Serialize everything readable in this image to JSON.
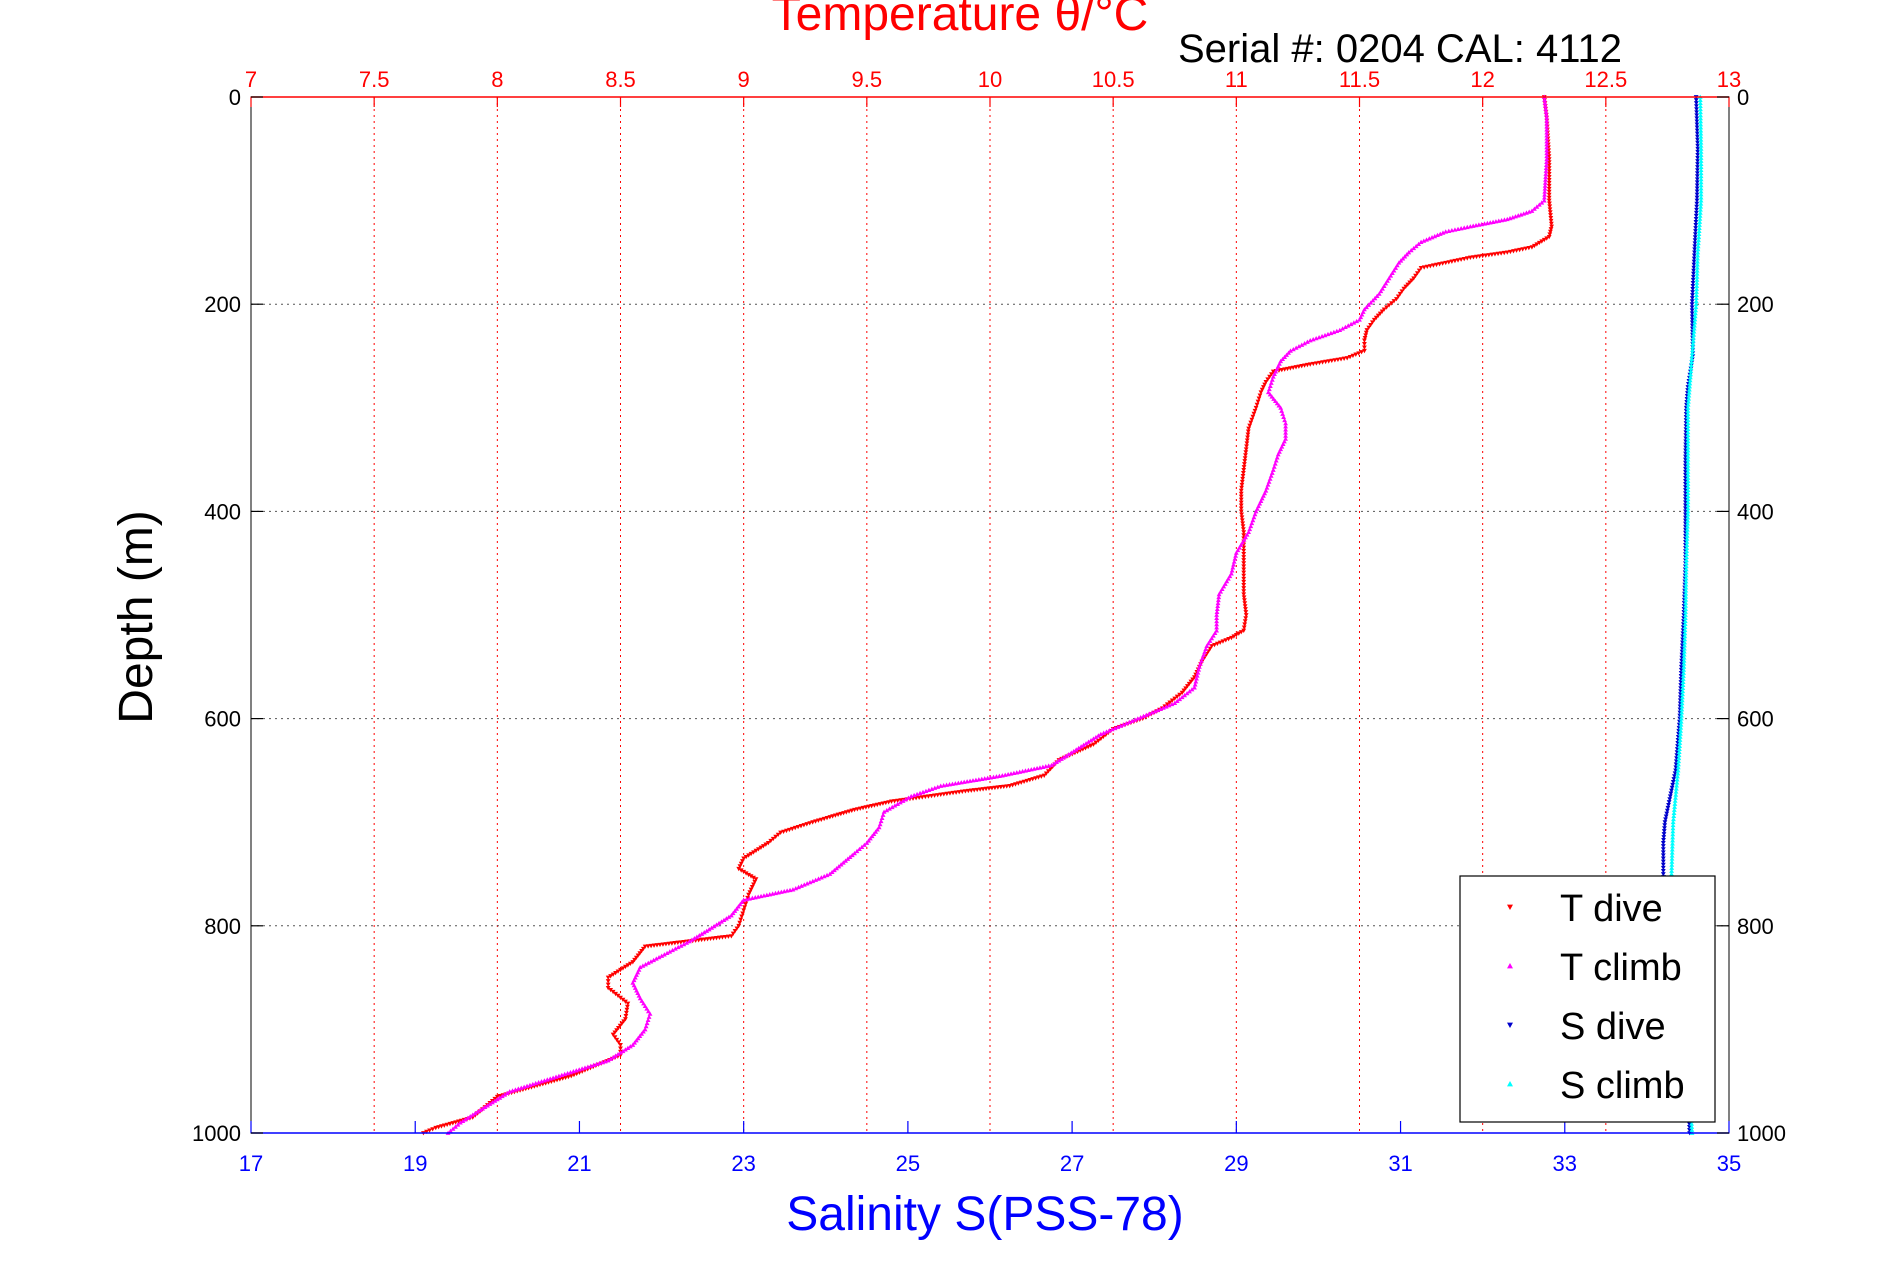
{
  "colors": {
    "temperature_axis": "#ff0000",
    "salinity_axis": "#0000ff",
    "t_dive": "#ff0000",
    "t_climb": "#ff00ff",
    "s_dive": "#0000cc",
    "s_climb": "#00ffff",
    "depth_axis": "#000000",
    "grid": "#555555"
  },
  "chart_data": {
    "type": "scatter",
    "title": "Temperature θ/°C",
    "subtitle": "Serial #: 0204  CAL: 4112",
    "xlabel": "Salinity S(PSS-78)",
    "x2label": "Temperature θ/°C",
    "ylabel": "Depth (m)",
    "grid": true,
    "legend_position": "bottom-right",
    "temperature_axis": {
      "range": [
        7,
        13
      ],
      "ticks": [
        "7",
        "7.5",
        "8",
        "8.5",
        "9",
        "9.5",
        "10",
        "10.5",
        "11",
        "11.5",
        "12",
        "12.5",
        "13"
      ]
    },
    "salinity_axis": {
      "range": [
        17,
        35
      ],
      "ticks": [
        "17",
        "19",
        "21",
        "23",
        "25",
        "27",
        "29",
        "31",
        "33",
        "35"
      ]
    },
    "depth_axis": {
      "range": [
        0,
        1000
      ],
      "inverted": true,
      "ticks": [
        "0",
        "200",
        "400",
        "600",
        "800",
        "1000"
      ]
    },
    "series": [
      {
        "name": "T dive",
        "axis": "temperature",
        "marker": "triangle-down",
        "points": [
          [
            0,
            12.25
          ],
          [
            20,
            12.26
          ],
          [
            60,
            12.27
          ],
          [
            100,
            12.27
          ],
          [
            125,
            12.28
          ],
          [
            135,
            12.27
          ],
          [
            145,
            12.2
          ],
          [
            150,
            12.1
          ],
          [
            155,
            11.95
          ],
          [
            160,
            11.85
          ],
          [
            165,
            11.75
          ],
          [
            175,
            11.72
          ],
          [
            185,
            11.68
          ],
          [
            195,
            11.65
          ],
          [
            205,
            11.6
          ],
          [
            215,
            11.56
          ],
          [
            225,
            11.53
          ],
          [
            235,
            11.52
          ],
          [
            245,
            11.52
          ],
          [
            252,
            11.45
          ],
          [
            258,
            11.3
          ],
          [
            265,
            11.15
          ],
          [
            275,
            11.12
          ],
          [
            285,
            11.1
          ],
          [
            300,
            11.08
          ],
          [
            320,
            11.05
          ],
          [
            340,
            11.04
          ],
          [
            360,
            11.03
          ],
          [
            380,
            11.02
          ],
          [
            400,
            11.02
          ],
          [
            420,
            11.03
          ],
          [
            450,
            11.03
          ],
          [
            480,
            11.03
          ],
          [
            500,
            11.04
          ],
          [
            515,
            11.03
          ],
          [
            522,
            10.98
          ],
          [
            530,
            10.9
          ],
          [
            545,
            10.86
          ],
          [
            560,
            10.83
          ],
          [
            575,
            10.78
          ],
          [
            590,
            10.7
          ],
          [
            600,
            10.62
          ],
          [
            610,
            10.5
          ],
          [
            625,
            10.42
          ],
          [
            640,
            10.28
          ],
          [
            655,
            10.22
          ],
          [
            665,
            10.08
          ],
          [
            670,
            9.9
          ],
          [
            675,
            9.75
          ],
          [
            680,
            9.6
          ],
          [
            688,
            9.45
          ],
          [
            695,
            9.35
          ],
          [
            700,
            9.28
          ],
          [
            710,
            9.15
          ],
          [
            720,
            9.1
          ],
          [
            735,
            9.0
          ],
          [
            745,
            8.98
          ],
          [
            755,
            9.05
          ],
          [
            770,
            9.02
          ],
          [
            785,
            9.0
          ],
          [
            800,
            8.98
          ],
          [
            810,
            8.95
          ],
          [
            820,
            8.6
          ],
          [
            835,
            8.55
          ],
          [
            850,
            8.45
          ],
          [
            860,
            8.45
          ],
          [
            875,
            8.53
          ],
          [
            890,
            8.52
          ],
          [
            905,
            8.47
          ],
          [
            915,
            8.5
          ],
          [
            925,
            8.5
          ],
          [
            935,
            8.4
          ],
          [
            945,
            8.3
          ],
          [
            955,
            8.15
          ],
          [
            965,
            8.0
          ],
          [
            975,
            7.95
          ],
          [
            985,
            7.9
          ],
          [
            995,
            7.75
          ],
          [
            1000,
            7.7
          ]
        ]
      },
      {
        "name": "T climb",
        "axis": "temperature",
        "marker": "triangle-up",
        "points": [
          [
            0,
            12.25
          ],
          [
            20,
            12.26
          ],
          [
            60,
            12.26
          ],
          [
            100,
            12.25
          ],
          [
            110,
            12.2
          ],
          [
            118,
            12.1
          ],
          [
            125,
            11.95
          ],
          [
            130,
            11.85
          ],
          [
            140,
            11.75
          ],
          [
            150,
            11.7
          ],
          [
            160,
            11.66
          ],
          [
            175,
            11.62
          ],
          [
            190,
            11.58
          ],
          [
            205,
            11.52
          ],
          [
            215,
            11.5
          ],
          [
            225,
            11.42
          ],
          [
            235,
            11.3
          ],
          [
            245,
            11.22
          ],
          [
            255,
            11.18
          ],
          [
            270,
            11.15
          ],
          [
            285,
            11.13
          ],
          [
            300,
            11.18
          ],
          [
            315,
            11.2
          ],
          [
            330,
            11.2
          ],
          [
            345,
            11.17
          ],
          [
            360,
            11.15
          ],
          [
            380,
            11.12
          ],
          [
            400,
            11.08
          ],
          [
            420,
            11.05
          ],
          [
            440,
            11.0
          ],
          [
            460,
            10.98
          ],
          [
            480,
            10.93
          ],
          [
            500,
            10.92
          ],
          [
            515,
            10.92
          ],
          [
            530,
            10.88
          ],
          [
            550,
            10.85
          ],
          [
            570,
            10.83
          ],
          [
            585,
            10.75
          ],
          [
            600,
            10.6
          ],
          [
            615,
            10.45
          ],
          [
            630,
            10.35
          ],
          [
            645,
            10.25
          ],
          [
            655,
            10.05
          ],
          [
            665,
            9.8
          ],
          [
            675,
            9.68
          ],
          [
            690,
            9.57
          ],
          [
            705,
            9.55
          ],
          [
            720,
            9.5
          ],
          [
            730,
            9.45
          ],
          [
            750,
            9.35
          ],
          [
            765,
            9.2
          ],
          [
            775,
            9.0
          ],
          [
            790,
            8.95
          ],
          [
            805,
            8.85
          ],
          [
            815,
            8.78
          ],
          [
            825,
            8.7
          ],
          [
            840,
            8.58
          ],
          [
            855,
            8.55
          ],
          [
            870,
            8.58
          ],
          [
            885,
            8.62
          ],
          [
            900,
            8.6
          ],
          [
            915,
            8.55
          ],
          [
            930,
            8.45
          ],
          [
            945,
            8.25
          ],
          [
            960,
            8.05
          ],
          [
            975,
            7.95
          ],
          [
            990,
            7.85
          ],
          [
            1000,
            7.8
          ]
        ]
      },
      {
        "name": "S dive",
        "axis": "salinity",
        "marker": "triangle-down",
        "points": [
          [
            0,
            34.6
          ],
          [
            50,
            34.62
          ],
          [
            100,
            34.61
          ],
          [
            150,
            34.58
          ],
          [
            200,
            34.55
          ],
          [
            250,
            34.56
          ],
          [
            280,
            34.5
          ],
          [
            300,
            34.48
          ],
          [
            350,
            34.47
          ],
          [
            400,
            34.47
          ],
          [
            450,
            34.47
          ],
          [
            500,
            34.45
          ],
          [
            550,
            34.42
          ],
          [
            600,
            34.4
          ],
          [
            650,
            34.35
          ],
          [
            700,
            34.22
          ],
          [
            720,
            34.2
          ],
          [
            750,
            34.2
          ],
          [
            800,
            34.25
          ],
          [
            850,
            34.35
          ],
          [
            900,
            34.45
          ],
          [
            950,
            34.5
          ],
          [
            1000,
            34.52
          ]
        ]
      },
      {
        "name": "S climb",
        "axis": "salinity",
        "marker": "triangle-up",
        "points": [
          [
            0,
            34.65
          ],
          [
            50,
            34.66
          ],
          [
            100,
            34.66
          ],
          [
            150,
            34.62
          ],
          [
            200,
            34.6
          ],
          [
            250,
            34.55
          ],
          [
            300,
            34.5
          ],
          [
            350,
            34.5
          ],
          [
            400,
            34.5
          ],
          [
            450,
            34.48
          ],
          [
            500,
            34.47
          ],
          [
            550,
            34.45
          ],
          [
            600,
            34.42
          ],
          [
            650,
            34.38
          ],
          [
            700,
            34.32
          ],
          [
            750,
            34.3
          ],
          [
            800,
            34.32
          ],
          [
            850,
            34.4
          ],
          [
            900,
            34.48
          ],
          [
            950,
            34.52
          ],
          [
            1000,
            34.55
          ]
        ]
      }
    ]
  }
}
